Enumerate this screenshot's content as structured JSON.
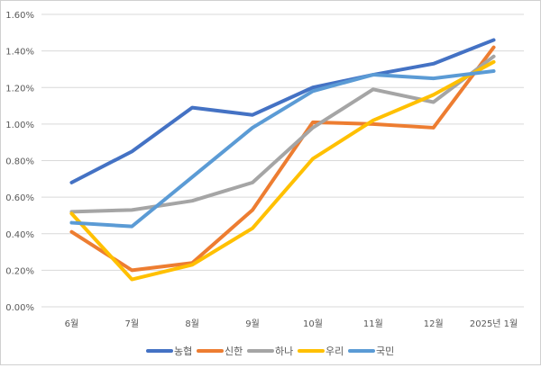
{
  "chart_data": {
    "type": "line",
    "title": "",
    "xlabel": "",
    "ylabel": "",
    "categories": [
      "6월",
      "7월",
      "8월",
      "9월",
      "10월",
      "11월",
      "12월",
      "2025년 1월"
    ],
    "ylim": [
      0,
      1.6
    ],
    "yticks": [
      "0.00%",
      "0.20%",
      "0.40%",
      "0.60%",
      "0.80%",
      "1.00%",
      "1.20%",
      "1.40%",
      "1.60%"
    ],
    "grid": true,
    "legend": "bottom",
    "series": [
      {
        "name": "농협",
        "color": "#4472C4",
        "values": [
          0.68,
          0.85,
          1.09,
          1.05,
          1.2,
          1.27,
          1.33,
          1.46
        ]
      },
      {
        "name": "신한",
        "color": "#ED7D31",
        "values": [
          0.41,
          0.2,
          0.24,
          0.53,
          1.01,
          1.0,
          0.98,
          1.42
        ]
      },
      {
        "name": "하나",
        "color": "#A5A5A5",
        "values": [
          0.52,
          0.53,
          0.58,
          0.68,
          0.98,
          1.19,
          1.12,
          1.37
        ]
      },
      {
        "name": "우리",
        "color": "#FFC000",
        "values": [
          0.51,
          0.15,
          0.23,
          0.43,
          0.81,
          1.02,
          1.16,
          1.34
        ]
      },
      {
        "name": "국민",
        "color": "#5B9BD5",
        "values": [
          0.46,
          0.44,
          0.71,
          0.98,
          1.18,
          1.27,
          1.25,
          1.29
        ]
      }
    ]
  }
}
